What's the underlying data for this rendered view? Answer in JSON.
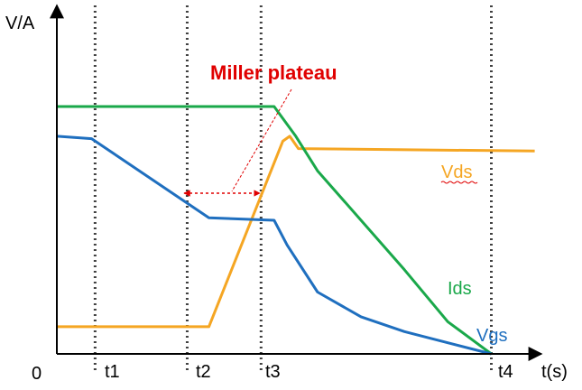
{
  "chart_data": {
    "type": "line",
    "title": "",
    "xlabel": "t(s)",
    "ylabel": "V/A",
    "origin_label": "0",
    "time_markers": [
      "t1",
      "t2",
      "t3",
      "t4"
    ],
    "annotation": "Miller plateau",
    "series": [
      {
        "name": "Vds",
        "color": "#f5a623",
        "points": [
          [
            0,
            0.11
          ],
          [
            1.75,
            0.11
          ],
          [
            2.6,
            0.86
          ],
          [
            2.68,
            0.88
          ],
          [
            2.78,
            0.83
          ],
          [
            5.5,
            0.82
          ]
        ]
      },
      {
        "name": "Ids",
        "color": "#1aa84a",
        "points": [
          [
            0,
            1.0
          ],
          [
            2.5,
            1.0
          ],
          [
            2.75,
            0.88
          ],
          [
            3.0,
            0.74
          ],
          [
            3.5,
            0.54
          ],
          [
            4.0,
            0.34
          ],
          [
            4.5,
            0.13
          ],
          [
            5.0,
            0.0
          ]
        ]
      },
      {
        "name": "Vgs",
        "color": "#1f6fbf",
        "points": [
          [
            0,
            0.88
          ],
          [
            0.4,
            0.87
          ],
          [
            1.75,
            0.55
          ],
          [
            2.5,
            0.54
          ],
          [
            2.65,
            0.44
          ],
          [
            3.0,
            0.25
          ],
          [
            3.5,
            0.15
          ],
          [
            4.0,
            0.09
          ],
          [
            4.5,
            0.045
          ],
          [
            5.0,
            0.0
          ]
        ]
      }
    ],
    "colors": {
      "axis": "#000000",
      "markers": "#404040",
      "annotation": "#e00000"
    }
  }
}
